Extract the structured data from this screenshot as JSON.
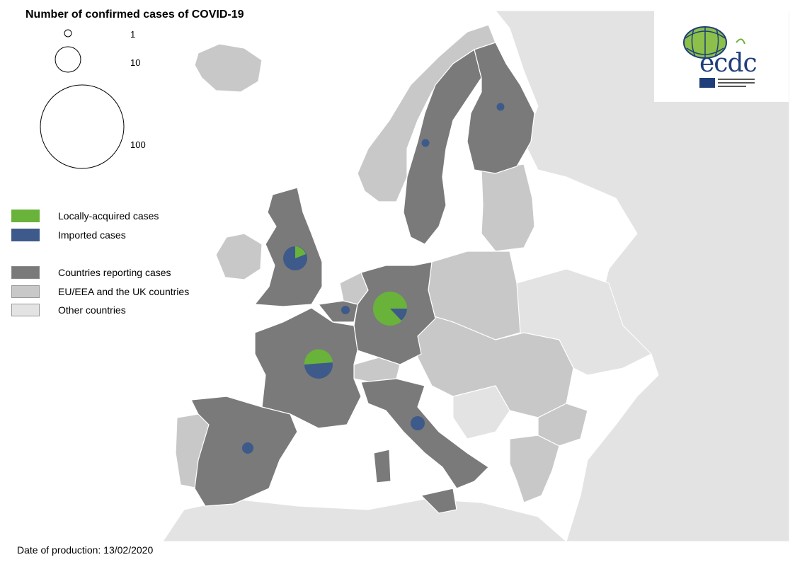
{
  "title": "Number of confirmed cases of COVID-19",
  "size_legend": [
    {
      "value": 1,
      "label": "1"
    },
    {
      "value": 10,
      "label": "10"
    },
    {
      "value": 100,
      "label": "100"
    }
  ],
  "legend": {
    "cases": [
      {
        "label": "Locally-acquired cases",
        "color": "#6ab33a"
      },
      {
        "label": "Imported cases",
        "color": "#3d5a8a"
      }
    ],
    "countries": [
      {
        "label": "Countries reporting cases",
        "color": "#7a7a7a"
      },
      {
        "label": "EU/EEA and the UK countries",
        "color": "#c8c8c8"
      },
      {
        "label": "Other countries",
        "color": "#e3e3e3"
      }
    ]
  },
  "colors": {
    "sea": "#ffffff",
    "reporting": "#7a7a7a",
    "eu_eea_uk": "#c8c8c8",
    "other": "#e3e3e3",
    "border": "#ffffff",
    "coast": "#333333",
    "local": "#6ab33a",
    "imported": "#3d5a8a"
  },
  "logo": {
    "wordmark": "ecdc"
  },
  "footer": {
    "date_label": "Date of production: 13/02/2020"
  }
}
